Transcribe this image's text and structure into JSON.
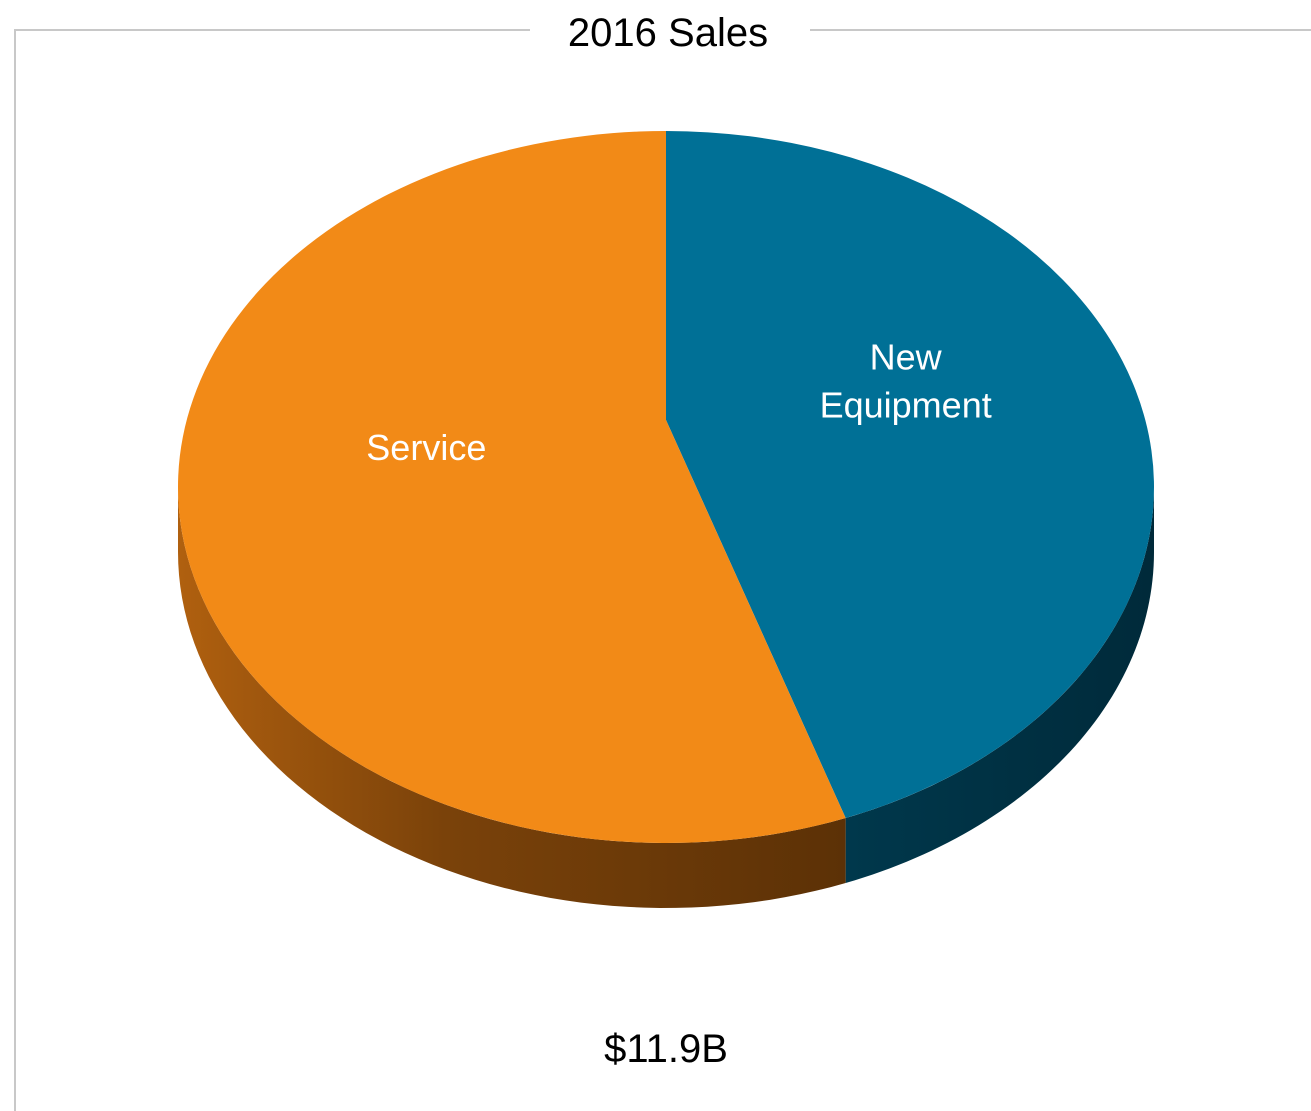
{
  "chart_data": {
    "type": "pie",
    "title": "2016 Sales",
    "categories": [
      "New Equipment",
      "Service"
    ],
    "values": [
      44,
      56
    ],
    "colors": [
      "#007096",
      "#f28a17"
    ],
    "annotation": "$11.9B"
  }
}
